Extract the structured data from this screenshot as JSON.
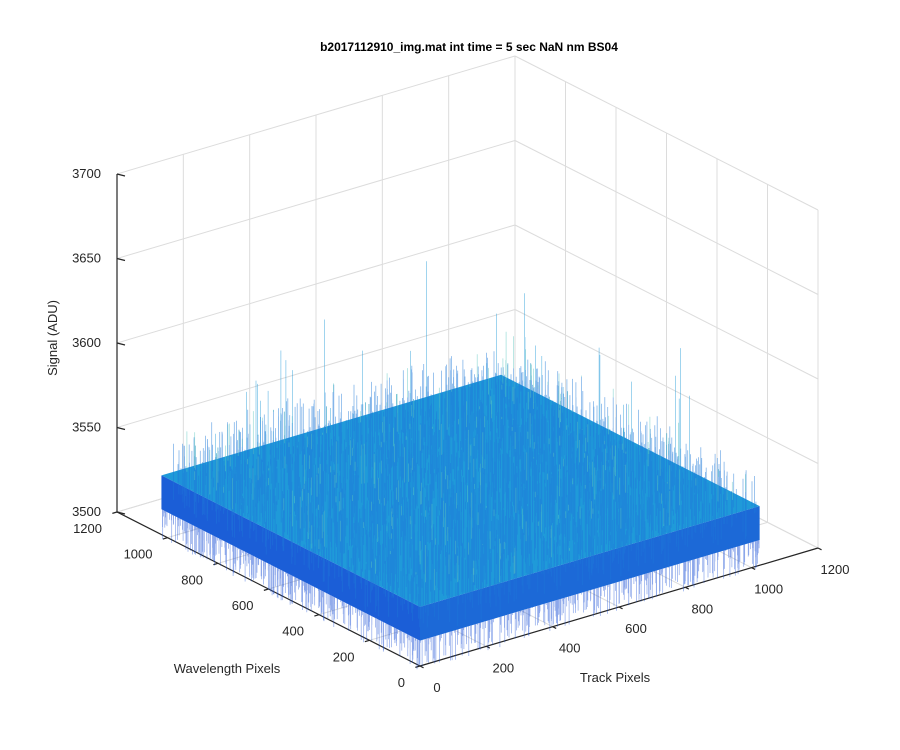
{
  "chart_data": {
    "type": "surface",
    "title": "b2017112910_img.mat int time = 5 sec  NaN nm BS04",
    "xlabel": "Track Pixels",
    "ylabel": "Wavelength Pixels",
    "zlabel": "Signal (ADU)",
    "xlim": [
      0,
      1200
    ],
    "ylim": [
      0,
      1200
    ],
    "zlim": [
      3500,
      3700
    ],
    "x_ticks": [
      "0",
      "200",
      "400",
      "600",
      "800",
      "1000",
      "1200"
    ],
    "y_ticks": [
      "0",
      "200",
      "400",
      "600",
      "800",
      "1000",
      "1200"
    ],
    "z_ticks": [
      "3500",
      "3550",
      "3600",
      "3650",
      "3700"
    ],
    "data_extent": {
      "x": [
        0,
        1024
      ],
      "y": [
        0,
        1024
      ]
    },
    "signal_mean": 3535,
    "signal_noise_range": [
      3515,
      3560
    ],
    "spike_max": 3650,
    "grid": true,
    "colormap": "parula",
    "surface_color_low": "#1a4fd6",
    "surface_color_mid": "#1f9ad9",
    "surface_color_high": "#5cc7c0"
  }
}
